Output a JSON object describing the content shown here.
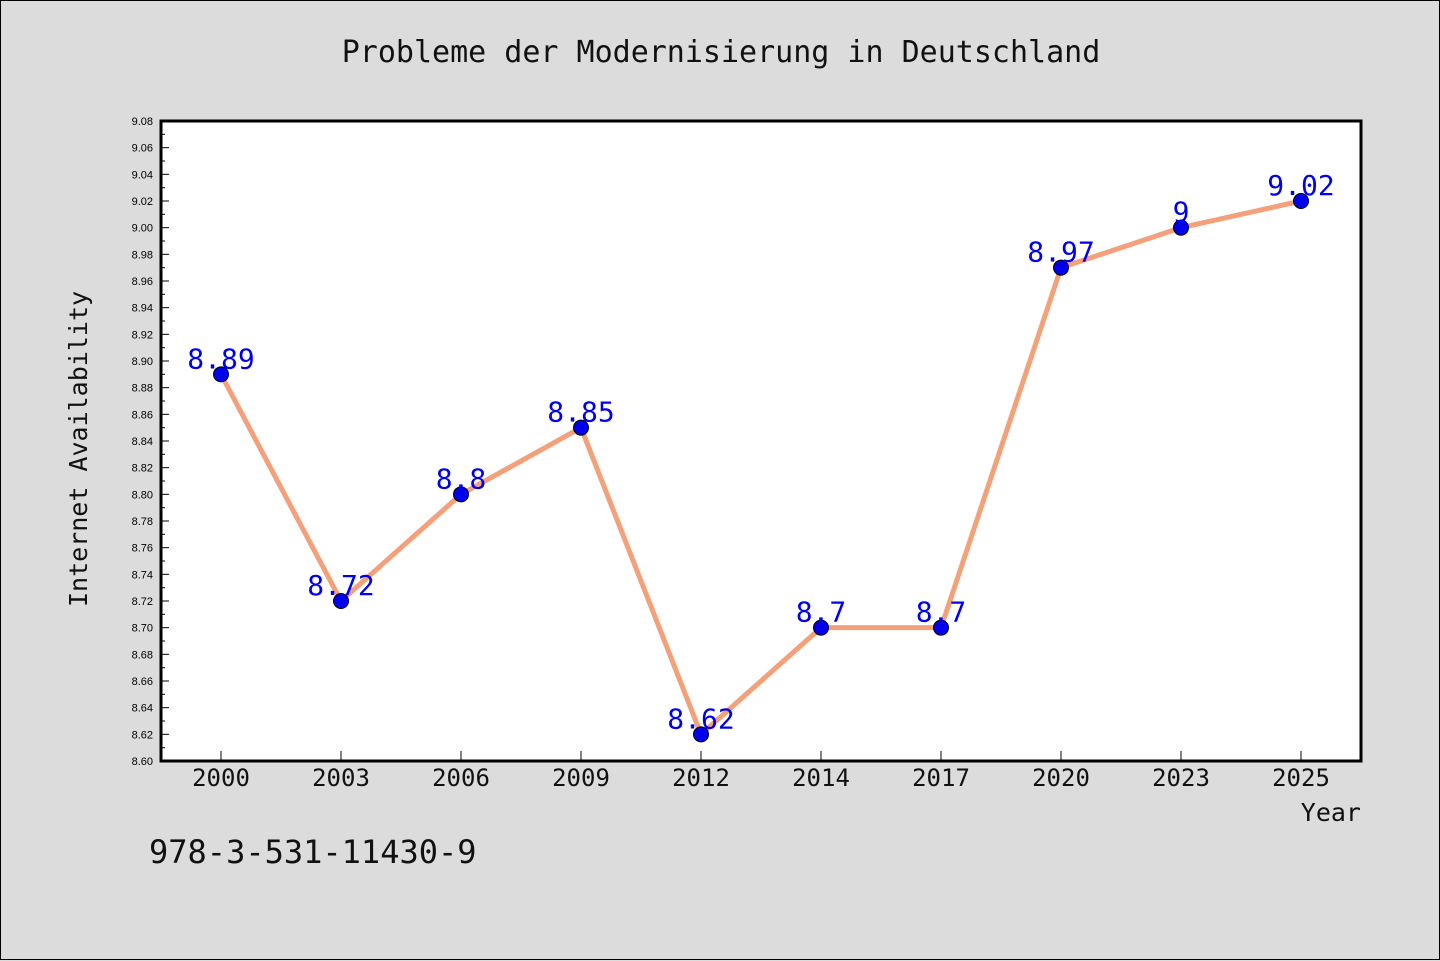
{
  "chart_data": {
    "type": "line",
    "title": "Probleme der Modernisierung in Deutschland",
    "xlabel": "Year",
    "ylabel": "Internet Availability",
    "categories": [
      "2000",
      "2003",
      "2006",
      "2009",
      "2012",
      "2014",
      "2017",
      "2020",
      "2023",
      "2025"
    ],
    "values": [
      8.89,
      8.72,
      8.8,
      8.85,
      8.62,
      8.7,
      8.7,
      8.97,
      9.0,
      9.02
    ],
    "data_labels": [
      "8.89",
      "8.72",
      "8.8",
      "8.85",
      "8.62",
      "8.7",
      "8.7",
      "8.97",
      "9",
      "9.02"
    ],
    "ylim": [
      8.6,
      9.08
    ],
    "yticks": [
      "8.60",
      "8.62",
      "8.64",
      "8.66",
      "8.68",
      "8.70",
      "8.72",
      "8.74",
      "8.76",
      "8.78",
      "8.80",
      "8.82",
      "8.84",
      "8.86",
      "8.88",
      "8.90",
      "8.92",
      "8.94",
      "8.96",
      "8.98",
      "9.00",
      "9.02",
      "9.04",
      "9.06",
      "9.08"
    ],
    "grid": false,
    "legend": "none",
    "colors": {
      "background": "#dcdcdc",
      "plot_area": "#ffffff",
      "line": "#f4a07a",
      "marker": "#0000ee",
      "data_label": "#0000ee"
    }
  },
  "footer": {
    "code": "978-3-531-11430-9"
  }
}
